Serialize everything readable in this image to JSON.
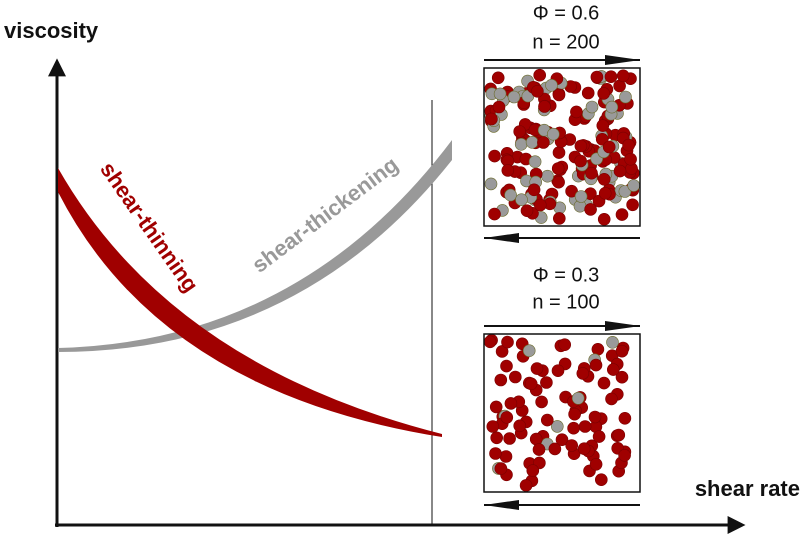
{
  "axes": {
    "y_label": "viscosity",
    "x_label": "shear rate"
  },
  "curves": [
    {
      "label": "shear-thinning"
    },
    {
      "label": "shear-thickening"
    }
  ],
  "panels": [
    {
      "phi": "Φ = 0.6",
      "n": "n = 200"
    },
    {
      "phi": "Φ = 0.3",
      "n": "n = 100"
    }
  ]
}
